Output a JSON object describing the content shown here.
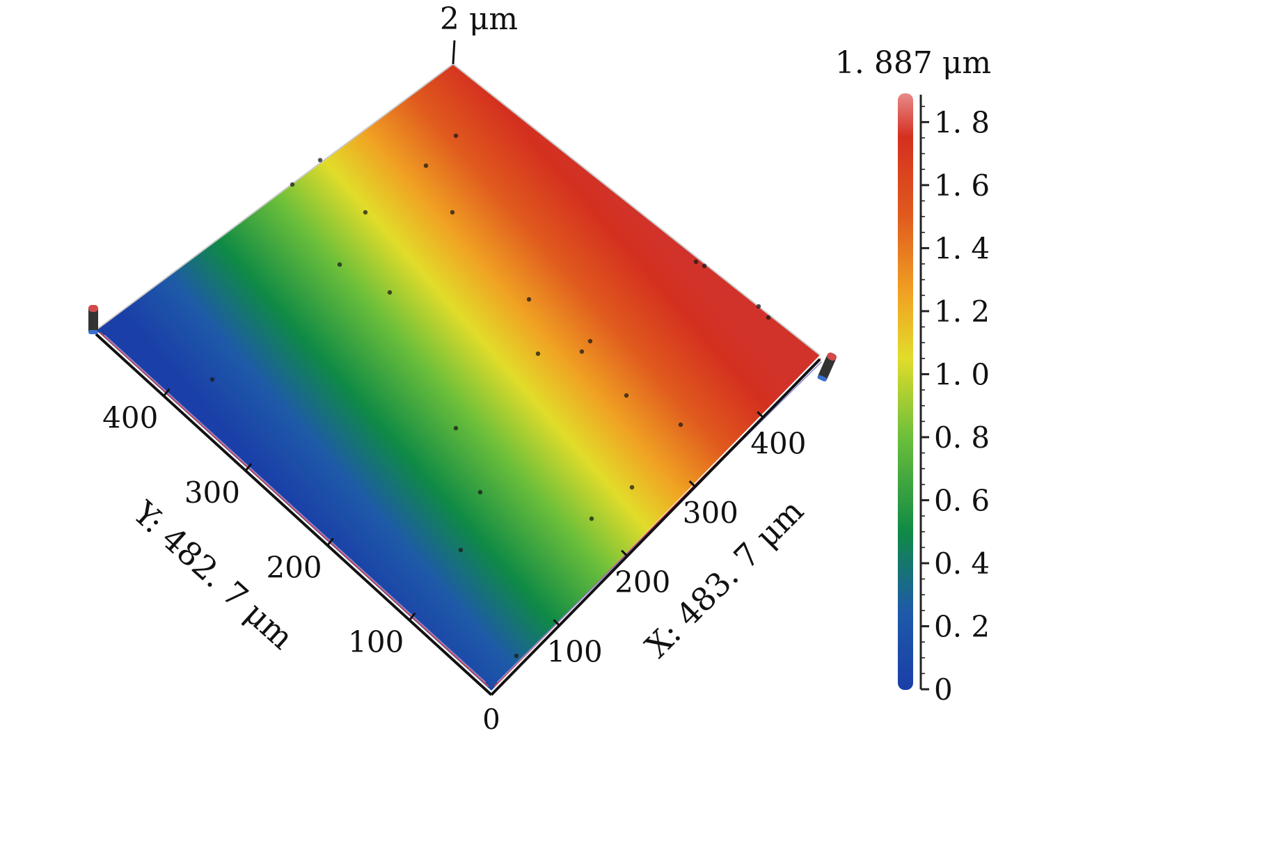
{
  "chart_data": {
    "type": "surface3d",
    "z_axis_label": "2 μm",
    "x_axis": {
      "label": "X: 483. 7 μm",
      "range": [
        0,
        483.7
      ],
      "tick_values": [
        100,
        200,
        300,
        400
      ],
      "tick_labels": [
        "100",
        "200",
        "300",
        "400"
      ]
    },
    "y_axis": {
      "label": "Y: 482. 7 μm",
      "range": [
        0,
        482.7
      ],
      "tick_values": [
        100,
        200,
        300,
        400
      ],
      "tick_labels": [
        "100",
        "200",
        "300",
        "400"
      ]
    },
    "origin_label": "0",
    "height_range": [
      0,
      1.887
    ],
    "surface_gradient": {
      "height_at_x0": 0.0,
      "height_at_xmax": 1.887
    },
    "colorbar": {
      "max_label": "1. 887 μm",
      "range": [
        0,
        1.887
      ],
      "tick_values": [
        0,
        0.2,
        0.4,
        0.6,
        0.8,
        1.0,
        1.2,
        1.4,
        1.6,
        1.8
      ],
      "tick_labels": [
        "0",
        "0. 2",
        "0. 4",
        "0. 6",
        "0. 8",
        "1. 0",
        "1. 2",
        "1. 4",
        "1. 6",
        "1. 8"
      ],
      "colormap_stops": [
        {
          "value": 0.0,
          "color": "#1a3fa8"
        },
        {
          "value": 0.25,
          "color": "#1e5aa8"
        },
        {
          "value": 0.5,
          "color": "#0f8a45"
        },
        {
          "value": 0.8,
          "color": "#6cbf3a"
        },
        {
          "value": 1.05,
          "color": "#e2dc2a"
        },
        {
          "value": 1.25,
          "color": "#f0a323"
        },
        {
          "value": 1.5,
          "color": "#e05a1e"
        },
        {
          "value": 1.75,
          "color": "#d4301f"
        },
        {
          "value": 1.887,
          "color": "#e88a8a"
        }
      ]
    },
    "legend": "none",
    "grid": false
  }
}
